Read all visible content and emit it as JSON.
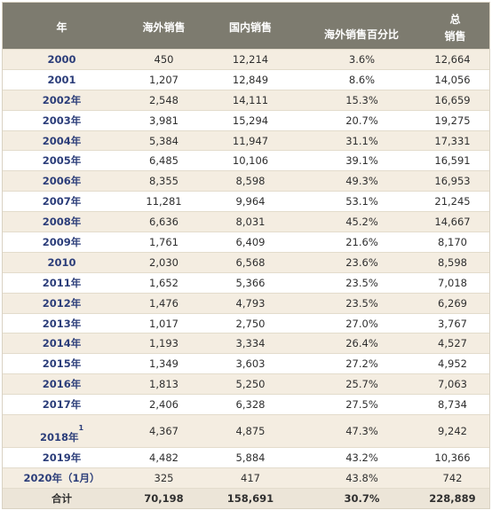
{
  "headers": {
    "year": "年",
    "overseas": "海外销售",
    "domestic": "国内销售",
    "overseas_pct": "海外销售百分比",
    "total_line1": "总",
    "total_line2": "销售"
  },
  "rows": [
    {
      "year": "2000",
      "overseas": "450",
      "domestic": "12,214",
      "pct": "3.6%",
      "total": "12,664"
    },
    {
      "year": "2001",
      "overseas": "1,207",
      "domestic": "12,849",
      "pct": "8.6%",
      "total": "14,056"
    },
    {
      "year": "2002年",
      "overseas": "2,548",
      "domestic": "14,111",
      "pct": "15.3%",
      "total": "16,659"
    },
    {
      "year": "2003年",
      "overseas": "3,981",
      "domestic": "15,294",
      "pct": "20.7%",
      "total": "19,275"
    },
    {
      "year": "2004年",
      "overseas": "5,384",
      "domestic": "11,947",
      "pct": "31.1%",
      "total": "17,331"
    },
    {
      "year": "2005年",
      "overseas": "6,485",
      "domestic": "10,106",
      "pct": "39.1%",
      "total": "16,591"
    },
    {
      "year": "2006年",
      "overseas": "8,355",
      "domestic": "8,598",
      "pct": "49.3%",
      "total": "16,953"
    },
    {
      "year": "2007年",
      "overseas": "11,281",
      "domestic": "9,964",
      "pct": "53.1%",
      "total": "21,245"
    },
    {
      "year": "2008年",
      "overseas": "6,636",
      "domestic": "8,031",
      "pct": "45.2%",
      "total": "14,667"
    },
    {
      "year": "2009年",
      "overseas": "1,761",
      "domestic": "6,409",
      "pct": "21.6%",
      "total": "8,170"
    },
    {
      "year": "2010",
      "overseas": "2,030",
      "domestic": "6,568",
      "pct": "23.6%",
      "total": "8,598"
    },
    {
      "year": "2011年",
      "overseas": "1,652",
      "domestic": "5,366",
      "pct": "23.5%",
      "total": "7,018"
    },
    {
      "year": "2012年",
      "overseas": "1,476",
      "domestic": "4,793",
      "pct": "23.5%",
      "total": "6,269"
    },
    {
      "year": "2013年",
      "overseas": "1,017",
      "domestic": "2,750",
      "pct": "27.0%",
      "total": "3,767"
    },
    {
      "year": "2014年",
      "overseas": "1,193",
      "domestic": "3,334",
      "pct": "26.4%",
      "total": "4,527"
    },
    {
      "year": "2015年",
      "overseas": "1,349",
      "domestic": "3,603",
      "pct": "27.2%",
      "total": "4,952"
    },
    {
      "year": "2016年",
      "overseas": "1,813",
      "domestic": "5,250",
      "pct": "25.7%",
      "total": "7,063"
    },
    {
      "year": "2017年",
      "overseas": "2,406",
      "domestic": "6,328",
      "pct": "27.5%",
      "total": "8,734"
    },
    {
      "year": "2018年",
      "footnote": "1",
      "overseas": "4,367",
      "domestic": "4,875",
      "pct": "47.3%",
      "total": "9,242"
    },
    {
      "year": "2019年",
      "overseas": "4,482",
      "domestic": "5,884",
      "pct": "43.2%",
      "total": "10,366"
    },
    {
      "year": "2020年（1月）",
      "overseas": "325",
      "domestic": "417",
      "pct": "43.8%",
      "total": "742"
    }
  ],
  "total_row": {
    "label": "合计",
    "overseas": "70,198",
    "domestic": "158,691",
    "pct": "30.7%",
    "total": "228,889"
  },
  "colors": {
    "header_bg": "#7d7b6f",
    "stripe": "#f4ede1",
    "year_text": "#2c3e7a"
  }
}
